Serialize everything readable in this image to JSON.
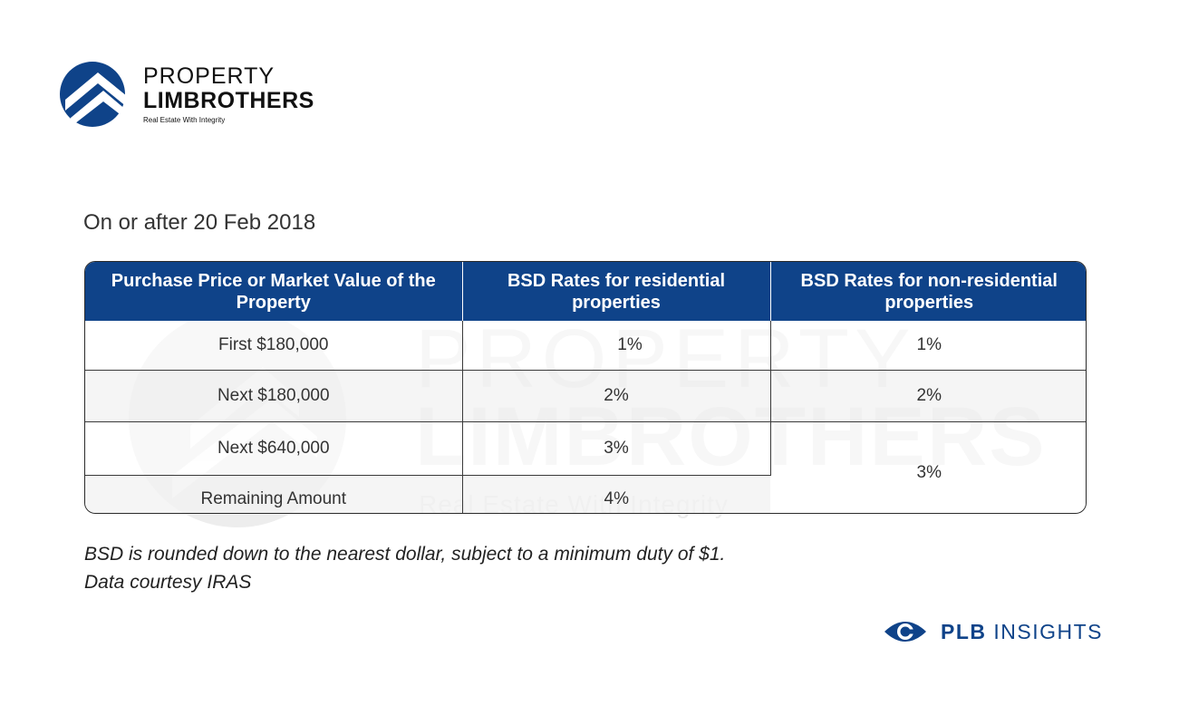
{
  "brand": {
    "name_line1": "PROPERTY",
    "name_line2": "LIMBROTHERS",
    "tagline": "Real Estate With Integrity"
  },
  "subtitle": "On or after 20 Feb 2018",
  "table": {
    "headers": [
      "Purchase Price or Market Value of the Property",
      "BSD Rates for residential properties",
      "BSD Rates for non-residential properties"
    ],
    "rows": [
      {
        "price": "First $180,000",
        "residential": "1%",
        "non_residential": "1%"
      },
      {
        "price": "Next $180,000",
        "residential": "2%",
        "non_residential": "2%"
      },
      {
        "price": "Next $640,000",
        "residential": "3%",
        "non_residential": "3%"
      },
      {
        "price": "Remaining Amount",
        "residential": "4%"
      }
    ]
  },
  "notes": {
    "line1": "BSD is rounded down to the nearest dollar, subject to a minimum duty of $1.",
    "line2": "Data courtesy IRAS"
  },
  "footer": {
    "bold": "PLB",
    "rest": "INSIGHTS"
  },
  "colors": {
    "brand_blue": "#0f4389",
    "row_alt": "#f2f2f2"
  },
  "icons": {
    "logo": "house-roof-circle-logo",
    "footer": "eye-icon"
  }
}
